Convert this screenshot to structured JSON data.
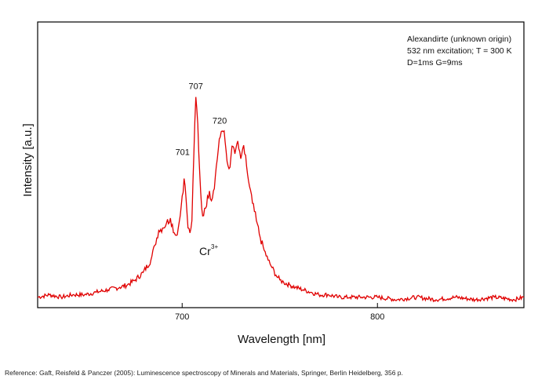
{
  "chart_data": {
    "type": "line",
    "title": "",
    "xlabel": "Wavelength [nm]",
    "ylabel": "Intensity [a.u.]",
    "xlim": [
      626,
      875
    ],
    "ylim": [
      0,
      1.0
    ],
    "x_ticks": [
      700,
      800
    ],
    "y_ticks": [],
    "grid": false,
    "series": [
      {
        "color": "#e00000",
        "x": [
          626,
          632,
          638,
          644,
          650,
          656,
          662,
          668,
          672,
          676,
          680,
          684,
          686,
          688,
          690,
          692,
          694,
          696,
          697,
          698,
          699,
          700,
          701,
          702,
          703,
          704,
          705,
          706,
          707,
          708,
          709,
          710,
          711,
          712,
          713,
          714,
          715,
          716,
          717,
          718,
          719,
          720,
          721,
          722,
          723,
          724,
          725,
          726,
          727,
          728,
          729,
          730,
          731,
          732,
          733,
          734,
          736,
          738,
          740,
          742,
          744,
          746,
          748,
          750,
          752,
          755,
          758,
          762,
          766,
          770,
          775,
          780,
          786,
          792,
          800,
          810,
          820,
          830,
          840,
          850,
          860,
          870,
          875
        ],
        "y": [
          0.02,
          0.03,
          0.02,
          0.03,
          0.03,
          0.04,
          0.05,
          0.06,
          0.07,
          0.09,
          0.12,
          0.17,
          0.23,
          0.29,
          0.3,
          0.32,
          0.34,
          0.28,
          0.27,
          0.3,
          0.35,
          0.43,
          0.5,
          0.42,
          0.3,
          0.28,
          0.33,
          0.6,
          0.83,
          0.72,
          0.52,
          0.38,
          0.35,
          0.38,
          0.43,
          0.45,
          0.41,
          0.45,
          0.51,
          0.58,
          0.66,
          0.69,
          0.69,
          0.65,
          0.57,
          0.54,
          0.59,
          0.63,
          0.6,
          0.64,
          0.62,
          0.58,
          0.62,
          0.6,
          0.55,
          0.49,
          0.4,
          0.33,
          0.26,
          0.21,
          0.17,
          0.14,
          0.11,
          0.09,
          0.08,
          0.07,
          0.06,
          0.05,
          0.04,
          0.03,
          0.03,
          0.02,
          0.02,
          0.02,
          0.02,
          0.01,
          0.02,
          0.01,
          0.02,
          0.01,
          0.02,
          0.01,
          0.02
        ]
      }
    ],
    "annotations": [
      {
        "text": "707",
        "x": 707,
        "y": 0.83
      },
      {
        "text": "720",
        "x": 720,
        "y": 0.69
      },
      {
        "text": "701",
        "x": 701,
        "y": 0.5
      }
    ],
    "ion_label": {
      "base": "Cr",
      "superscript": "3+"
    },
    "info_lines": [
      "Alexandirte (unknown origin)",
      "532 nm excitation; T = 300 K",
      "D=1ms G=9ms"
    ],
    "legend_placement": "none"
  },
  "reference": "Reference: Gaft, Reisfeld & Panczer (2005): Luminescence spectroscopy of Minerals and Materials, Springer, Berlin Heidelberg, 356 p."
}
